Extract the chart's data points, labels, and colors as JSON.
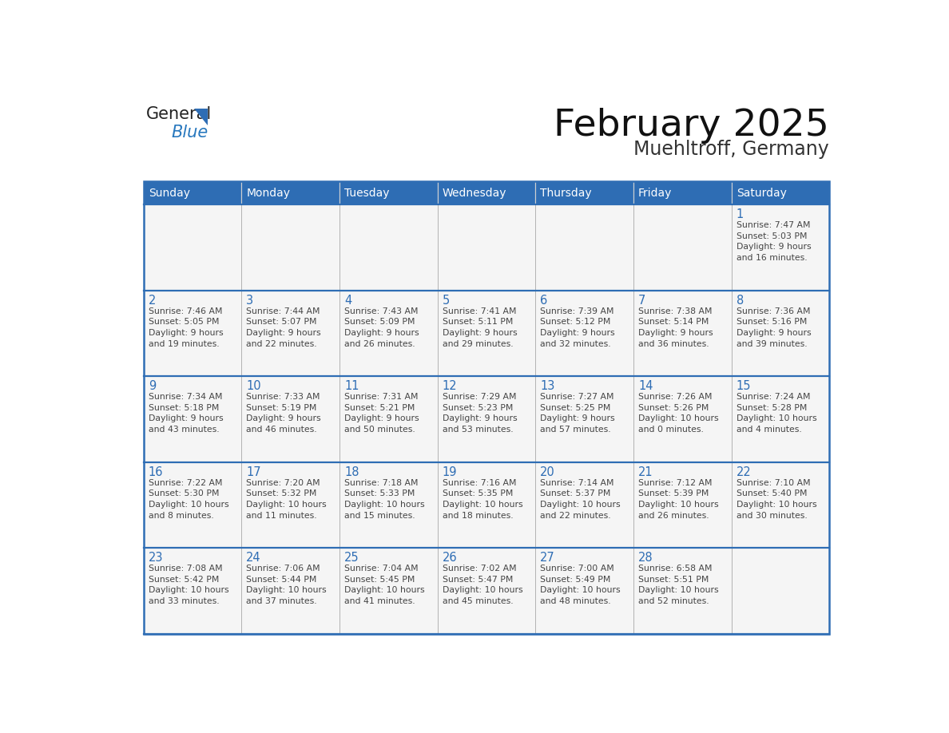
{
  "title": "February 2025",
  "subtitle": "Muehltroff, Germany",
  "header_bg": "#2E6DB4",
  "header_text_color": "#FFFFFF",
  "cell_bg": "#F5F5F5",
  "border_color": "#2E6DB4",
  "cell_border_color": "#AAAAAA",
  "day_number_color": "#2E6DB4",
  "text_color": "#444444",
  "days_of_week": [
    "Sunday",
    "Monday",
    "Tuesday",
    "Wednesday",
    "Thursday",
    "Friday",
    "Saturday"
  ],
  "calendar_data": [
    [
      {
        "day": "",
        "info": ""
      },
      {
        "day": "",
        "info": ""
      },
      {
        "day": "",
        "info": ""
      },
      {
        "day": "",
        "info": ""
      },
      {
        "day": "",
        "info": ""
      },
      {
        "day": "",
        "info": ""
      },
      {
        "day": "1",
        "info": "Sunrise: 7:47 AM\nSunset: 5:03 PM\nDaylight: 9 hours\nand 16 minutes."
      }
    ],
    [
      {
        "day": "2",
        "info": "Sunrise: 7:46 AM\nSunset: 5:05 PM\nDaylight: 9 hours\nand 19 minutes."
      },
      {
        "day": "3",
        "info": "Sunrise: 7:44 AM\nSunset: 5:07 PM\nDaylight: 9 hours\nand 22 minutes."
      },
      {
        "day": "4",
        "info": "Sunrise: 7:43 AM\nSunset: 5:09 PM\nDaylight: 9 hours\nand 26 minutes."
      },
      {
        "day": "5",
        "info": "Sunrise: 7:41 AM\nSunset: 5:11 PM\nDaylight: 9 hours\nand 29 minutes."
      },
      {
        "day": "6",
        "info": "Sunrise: 7:39 AM\nSunset: 5:12 PM\nDaylight: 9 hours\nand 32 minutes."
      },
      {
        "day": "7",
        "info": "Sunrise: 7:38 AM\nSunset: 5:14 PM\nDaylight: 9 hours\nand 36 minutes."
      },
      {
        "day": "8",
        "info": "Sunrise: 7:36 AM\nSunset: 5:16 PM\nDaylight: 9 hours\nand 39 minutes."
      }
    ],
    [
      {
        "day": "9",
        "info": "Sunrise: 7:34 AM\nSunset: 5:18 PM\nDaylight: 9 hours\nand 43 minutes."
      },
      {
        "day": "10",
        "info": "Sunrise: 7:33 AM\nSunset: 5:19 PM\nDaylight: 9 hours\nand 46 minutes."
      },
      {
        "day": "11",
        "info": "Sunrise: 7:31 AM\nSunset: 5:21 PM\nDaylight: 9 hours\nand 50 minutes."
      },
      {
        "day": "12",
        "info": "Sunrise: 7:29 AM\nSunset: 5:23 PM\nDaylight: 9 hours\nand 53 minutes."
      },
      {
        "day": "13",
        "info": "Sunrise: 7:27 AM\nSunset: 5:25 PM\nDaylight: 9 hours\nand 57 minutes."
      },
      {
        "day": "14",
        "info": "Sunrise: 7:26 AM\nSunset: 5:26 PM\nDaylight: 10 hours\nand 0 minutes."
      },
      {
        "day": "15",
        "info": "Sunrise: 7:24 AM\nSunset: 5:28 PM\nDaylight: 10 hours\nand 4 minutes."
      }
    ],
    [
      {
        "day": "16",
        "info": "Sunrise: 7:22 AM\nSunset: 5:30 PM\nDaylight: 10 hours\nand 8 minutes."
      },
      {
        "day": "17",
        "info": "Sunrise: 7:20 AM\nSunset: 5:32 PM\nDaylight: 10 hours\nand 11 minutes."
      },
      {
        "day": "18",
        "info": "Sunrise: 7:18 AM\nSunset: 5:33 PM\nDaylight: 10 hours\nand 15 minutes."
      },
      {
        "day": "19",
        "info": "Sunrise: 7:16 AM\nSunset: 5:35 PM\nDaylight: 10 hours\nand 18 minutes."
      },
      {
        "day": "20",
        "info": "Sunrise: 7:14 AM\nSunset: 5:37 PM\nDaylight: 10 hours\nand 22 minutes."
      },
      {
        "day": "21",
        "info": "Sunrise: 7:12 AM\nSunset: 5:39 PM\nDaylight: 10 hours\nand 26 minutes."
      },
      {
        "day": "22",
        "info": "Sunrise: 7:10 AM\nSunset: 5:40 PM\nDaylight: 10 hours\nand 30 minutes."
      }
    ],
    [
      {
        "day": "23",
        "info": "Sunrise: 7:08 AM\nSunset: 5:42 PM\nDaylight: 10 hours\nand 33 minutes."
      },
      {
        "day": "24",
        "info": "Sunrise: 7:06 AM\nSunset: 5:44 PM\nDaylight: 10 hours\nand 37 minutes."
      },
      {
        "day": "25",
        "info": "Sunrise: 7:04 AM\nSunset: 5:45 PM\nDaylight: 10 hours\nand 41 minutes."
      },
      {
        "day": "26",
        "info": "Sunrise: 7:02 AM\nSunset: 5:47 PM\nDaylight: 10 hours\nand 45 minutes."
      },
      {
        "day": "27",
        "info": "Sunrise: 7:00 AM\nSunset: 5:49 PM\nDaylight: 10 hours\nand 48 minutes."
      },
      {
        "day": "28",
        "info": "Sunrise: 6:58 AM\nSunset: 5:51 PM\nDaylight: 10 hours\nand 52 minutes."
      },
      {
        "day": "",
        "info": ""
      }
    ]
  ],
  "logo_text1": "General",
  "logo_text2": "Blue",
  "logo_text1_color": "#222222",
  "logo_text2_color": "#2878BE",
  "logo_triangle_color": "#2E6DB4",
  "fig_width": 11.88,
  "fig_height": 9.18,
  "dpi": 100
}
